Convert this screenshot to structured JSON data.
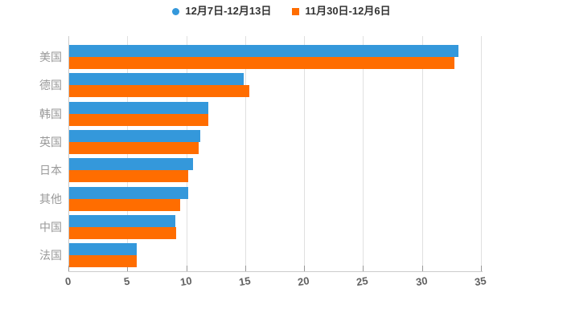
{
  "legend": {
    "items": [
      {
        "label": "12月7日-12月13日",
        "color": "#3498DB",
        "shape": "circle"
      },
      {
        "label": "11月30日-12月6日",
        "color": "#FF6D00",
        "shape": "square"
      }
    ]
  },
  "chart_data": {
    "type": "bar",
    "orientation": "horizontal",
    "title": "",
    "xlabel": "",
    "ylabel": "",
    "categories": [
      "美国",
      "德国",
      "韩国",
      "英国",
      "日本",
      "其他",
      "中国",
      "法国"
    ],
    "series": [
      {
        "name": "12月7日-12月13日",
        "color": "#3498DB",
        "values": [
          33.0,
          14.8,
          11.8,
          11.1,
          10.5,
          10.1,
          9.0,
          5.7
        ]
      },
      {
        "name": "11月30日-12月6日",
        "color": "#FF6D00",
        "values": [
          32.7,
          15.3,
          11.8,
          11.0,
          10.1,
          9.4,
          9.1,
          5.7
        ]
      }
    ],
    "xlim": [
      0,
      35
    ],
    "xticks": [
      0,
      5,
      10,
      15,
      20,
      25,
      30,
      35
    ],
    "grid": true,
    "legend_position": "top"
  },
  "colors": {
    "background": "#FFFFFF",
    "grid": "#E0E0E0",
    "axis": "#CCCCCC",
    "tick_text": "#616161",
    "category_text": "#999999",
    "legend_text": "#333333"
  }
}
